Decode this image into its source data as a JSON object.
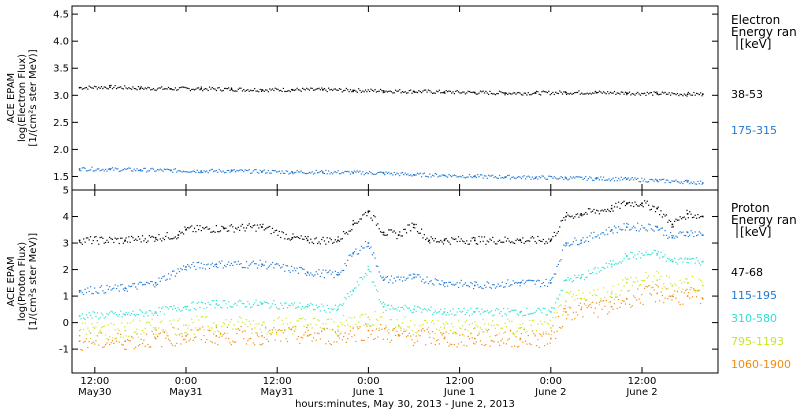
{
  "chart_data": [
    {
      "type": "scatter",
      "panel": "electron",
      "ylabel_lines": [
        "ACE EPAM",
        "log(Electron Flux)",
        "[1/(cm²s ster MeV)]"
      ],
      "ylim": [
        1.25,
        4.65
      ],
      "yticks": [
        1.5,
        2.0,
        2.5,
        3.0,
        3.5,
        4.0,
        4.5
      ],
      "ytick_labels": [
        "1.5",
        "2.0",
        "2.5",
        "3.0",
        "3.5",
        "4.0",
        "4.5"
      ],
      "legend_title_lines": [
        "Electron",
        "Energy ran",
        "[keV]"
      ],
      "x_range_hours": [
        -3,
        82
      ],
      "series": [
        {
          "name": "38-53",
          "color": "#000000",
          "x": [
            -2,
            2,
            6,
            10,
            14,
            18,
            22,
            26,
            30,
            34,
            38,
            42,
            46,
            50,
            54,
            58,
            62,
            66,
            70,
            74,
            78,
            80
          ],
          "y": [
            3.14,
            3.15,
            3.13,
            3.12,
            3.12,
            3.11,
            3.1,
            3.1,
            3.1,
            3.09,
            3.08,
            3.07,
            3.06,
            3.05,
            3.04,
            3.04,
            3.05,
            3.05,
            3.04,
            3.03,
            3.02,
            3.02
          ]
        },
        {
          "name": "175-315",
          "color": "#1f78d2",
          "x": [
            -2,
            2,
            6,
            10,
            14,
            18,
            22,
            26,
            30,
            34,
            38,
            42,
            46,
            50,
            54,
            58,
            62,
            66,
            70,
            74,
            78,
            80
          ],
          "y": [
            1.64,
            1.63,
            1.62,
            1.61,
            1.6,
            1.6,
            1.59,
            1.58,
            1.58,
            1.57,
            1.56,
            1.53,
            1.52,
            1.5,
            1.49,
            1.48,
            1.47,
            1.46,
            1.45,
            1.42,
            1.4,
            1.38
          ]
        }
      ]
    },
    {
      "type": "scatter",
      "panel": "proton",
      "ylabel_lines": [
        "ACE EPAM",
        "log(Proton Flux)",
        "[1/(cm²s ster MeV)]"
      ],
      "ylim": [
        -1.9,
        5.0
      ],
      "yticks": [
        -1,
        0,
        1,
        2,
        3,
        4,
        5
      ],
      "ytick_labels": [
        "-1",
        "0",
        "1",
        "2",
        "3",
        "4",
        "5"
      ],
      "legend_title_lines": [
        "Proton",
        "Energy ran",
        "[keV]"
      ],
      "series": [
        {
          "name": "47-68",
          "color": "#000000",
          "x": [
            -2,
            4,
            8,
            11,
            12,
            17,
            22,
            26,
            28,
            32,
            34,
            36,
            38,
            40,
            42,
            44,
            46,
            50,
            56,
            60,
            62,
            64,
            68,
            70,
            72,
            74,
            76,
            78,
            80
          ],
          "y": [
            3.1,
            3.1,
            3.2,
            3.3,
            3.5,
            3.55,
            3.6,
            3.2,
            3.1,
            3.1,
            3.7,
            4.2,
            3.4,
            3.3,
            3.7,
            3.1,
            3.1,
            3.1,
            3.1,
            3.1,
            4.0,
            4.1,
            4.3,
            4.5,
            4.5,
            4.3,
            3.7,
            4.1,
            4.0
          ]
        },
        {
          "name": "115-195",
          "color": "#1f78d2",
          "x": [
            -2,
            4,
            8,
            12,
            16,
            22,
            28,
            32,
            34,
            36,
            38,
            42,
            46,
            50,
            56,
            60,
            62,
            64,
            68,
            70,
            74,
            76,
            78,
            80
          ],
          "y": [
            1.2,
            1.3,
            1.5,
            2.1,
            2.2,
            2.2,
            1.9,
            1.8,
            2.6,
            3.0,
            1.6,
            1.7,
            1.5,
            1.4,
            1.5,
            1.5,
            3.0,
            3.1,
            3.5,
            3.6,
            3.6,
            3.2,
            3.4,
            3.3
          ]
        },
        {
          "name": "310-580",
          "color": "#2ee0d2",
          "x": [
            -2,
            4,
            8,
            12,
            16,
            22,
            28,
            32,
            34,
            36,
            38,
            42,
            46,
            50,
            56,
            60,
            62,
            64,
            68,
            70,
            74,
            76,
            78,
            80
          ],
          "y": [
            0.25,
            0.3,
            0.4,
            0.6,
            0.7,
            0.7,
            0.6,
            0.5,
            1.2,
            2.0,
            0.6,
            0.5,
            0.4,
            0.4,
            0.4,
            0.4,
            1.6,
            1.7,
            2.2,
            2.5,
            2.6,
            2.3,
            2.4,
            2.3
          ]
        },
        {
          "name": "795-1193",
          "color": "#c8e81e",
          "x": [
            -2,
            4,
            8,
            12,
            16,
            22,
            28,
            32,
            36,
            40,
            46,
            50,
            56,
            60,
            62,
            64,
            68,
            70,
            74,
            76,
            78,
            80
          ],
          "y": [
            -0.3,
            -0.3,
            -0.2,
            -0.1,
            -0.1,
            -0.1,
            -0.1,
            -0.15,
            0.2,
            -0.1,
            -0.2,
            -0.2,
            -0.2,
            -0.2,
            0.8,
            0.9,
            1.1,
            1.5,
            1.6,
            1.4,
            1.5,
            1.4
          ]
        },
        {
          "name": "1060-1900",
          "color": "#f08c14",
          "x": [
            -2,
            4,
            8,
            12,
            16,
            22,
            28,
            32,
            36,
            40,
            46,
            50,
            56,
            60,
            62,
            64,
            68,
            70,
            74,
            76,
            78,
            80
          ],
          "y": [
            -0.7,
            -0.7,
            -0.6,
            -0.5,
            -0.5,
            -0.5,
            -0.5,
            -0.5,
            -0.3,
            -0.5,
            -0.6,
            -0.6,
            -0.6,
            -0.6,
            0.4,
            0.5,
            0.6,
            0.9,
            1.1,
            1.0,
            1.0,
            0.9
          ]
        }
      ]
    }
  ],
  "x_axis": {
    "title": "hours:minutes, May 30, 2013 - June  2, 2013",
    "range_hours": [
      -3,
      82
    ],
    "ticks": [
      {
        "hour": 0,
        "time": "12:00",
        "date": "May30"
      },
      {
        "hour": 12,
        "time": "0:00",
        "date": "May31"
      },
      {
        "hour": 24,
        "time": "12:00",
        "date": "May31"
      },
      {
        "hour": 36,
        "time": "0:00",
        "date": "June 1"
      },
      {
        "hour": 48,
        "time": "12:00",
        "date": "June 1"
      },
      {
        "hour": 60,
        "time": "0:00",
        "date": "June 2"
      },
      {
        "hour": 72,
        "time": "12:00",
        "date": "June 2"
      }
    ]
  }
}
